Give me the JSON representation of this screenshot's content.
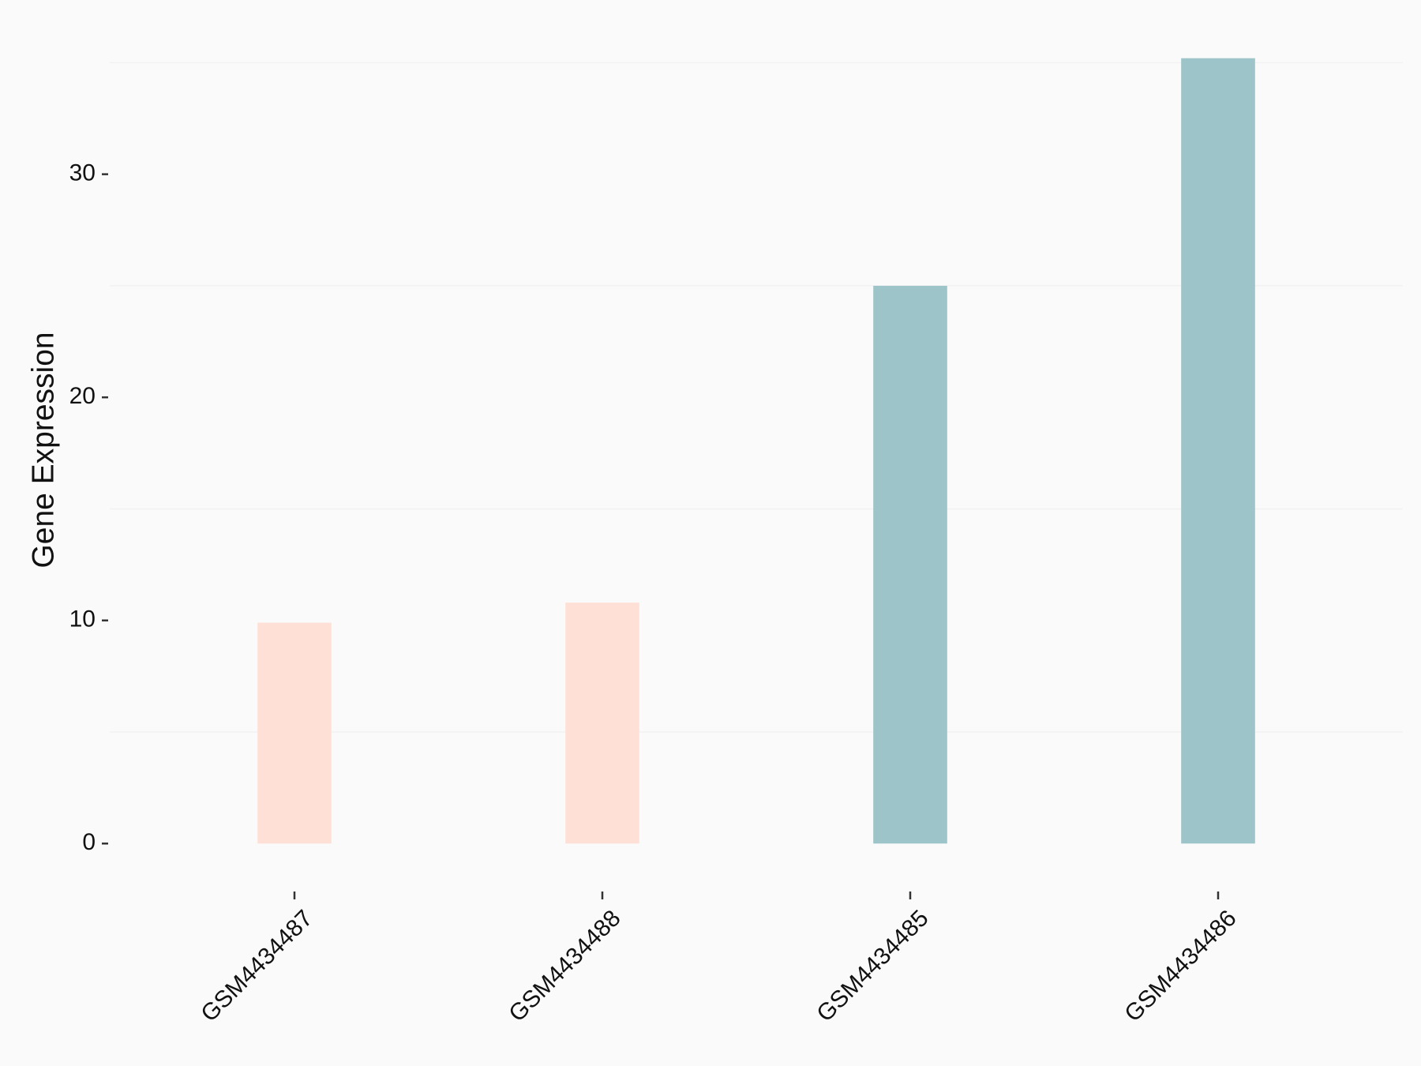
{
  "chart_data": {
    "type": "bar",
    "y_label": "Gene Expression",
    "categories": [
      "GSM4434487",
      "GSM4434488",
      "GSM4434485",
      "GSM4434486"
    ],
    "values": [
      9.9,
      10.8,
      25.0,
      35.2
    ],
    "colors": [
      "#FFE0D6",
      "#FFE0D6",
      "#9DC4C8",
      "#9DC4C8"
    ],
    "ylim": [
      -1.76,
      36.96
    ],
    "yticks": [
      0,
      10,
      20,
      30
    ],
    "minor_yticks": [
      5,
      15,
      25,
      35
    ],
    "grid": true
  }
}
